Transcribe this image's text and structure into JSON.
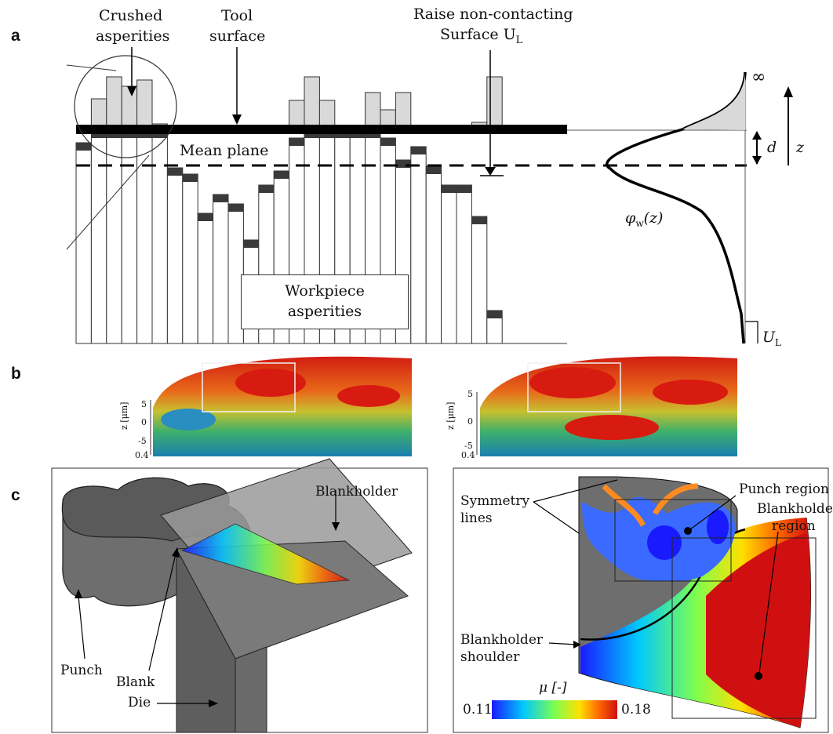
{
  "panels": {
    "a": "a",
    "b": "b",
    "c": "c"
  },
  "panel_a": {
    "crushed": [
      "Crushed",
      "asperities"
    ],
    "tool": [
      "Tool",
      "surface"
    ],
    "raise": [
      "Raise non-contacting",
      "Surface U"
    ],
    "raise_sub": "L",
    "mean_plane": "Mean plane",
    "workpiece": [
      "Workpiece",
      "asperities"
    ],
    "infinity": "∞",
    "d": "d",
    "z": "z",
    "phi": "φ",
    "phi_sub": "w",
    "phi_arg": "(z)",
    "ul": "U",
    "ul_sub": "L"
  },
  "panel_b": {
    "axis_label": "z [μm]",
    "ticks": [
      "5",
      "0",
      "-5",
      "0.4"
    ]
  },
  "panel_c": {
    "blankholder": "Blankholder",
    "punch": "Punch",
    "blank": "Blank",
    "die": "Die",
    "symmetry": [
      "Symmetry",
      "lines"
    ],
    "punch_region": "Punch region",
    "blankholder_region": [
      "Blankholder",
      "region"
    ],
    "blankholder_shoulder": [
      "Blankholder",
      "shoulder"
    ],
    "mu_label": "μ [-]",
    "mu_min": "0.11",
    "mu_max": "0.18"
  },
  "colors": {
    "asperity_fill": "#d9d9d9",
    "crushed": "#3a3a3a",
    "part_gray": "#707070",
    "colormap": [
      "#1a1aff",
      "#00c8ff",
      "#7cff50",
      "#ffe000",
      "#ff6a00",
      "#d01010"
    ]
  }
}
